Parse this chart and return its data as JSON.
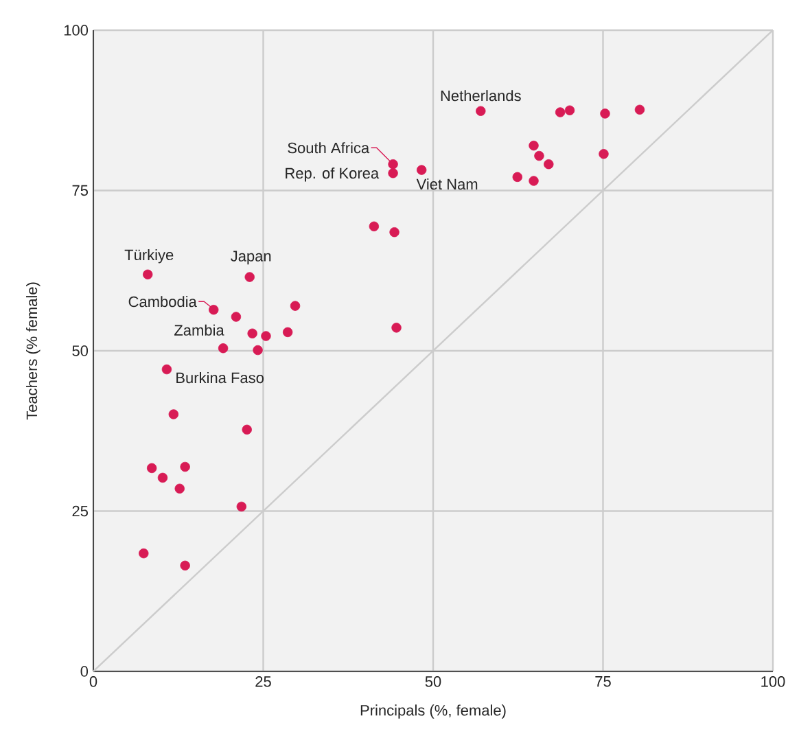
{
  "chart_data": {
    "type": "scatter",
    "xlabel": "Principals (%, female)",
    "ylabel": "Teachers (% female)",
    "xlim": [
      0,
      100
    ],
    "ylim": [
      0,
      100
    ],
    "xticks": [
      0,
      25,
      50,
      75,
      100
    ],
    "yticks": [
      0,
      25,
      50,
      75,
      100
    ],
    "grid": true,
    "series": [
      {
        "marker": "circle",
        "color": "#d81b55",
        "x": [
          8.0,
          23.0,
          17.7,
          21.0,
          29.7,
          23.4,
          25.4,
          28.6,
          44.6,
          19.1,
          24.2,
          10.8,
          11.8,
          22.6,
          8.6,
          13.5,
          10.2,
          12.7,
          21.8,
          7.4,
          13.5,
          57.0,
          68.7,
          70.1,
          75.3,
          80.4,
          64.8,
          65.6,
          67.0,
          75.1,
          62.4,
          64.8,
          44.1,
          44.1,
          48.3,
          41.3,
          44.3
        ],
        "values": [
          61.9,
          61.5,
          56.4,
          55.3,
          57.0,
          52.7,
          52.3,
          52.9,
          53.6,
          50.4,
          50.1,
          47.1,
          40.1,
          37.7,
          31.7,
          31.9,
          30.2,
          28.5,
          25.7,
          18.4,
          16.5,
          87.4,
          87.2,
          87.5,
          87.0,
          87.6,
          82.0,
          80.4,
          79.1,
          80.7,
          77.1,
          76.5,
          79.1,
          77.7,
          78.2,
          69.4,
          68.5
        ]
      },
      {
        "type": "line",
        "marker": "none",
        "color": "#cccccc",
        "x": [
          0,
          100
        ],
        "values": [
          0,
          100
        ]
      }
    ],
    "annotations": [
      {
        "text": "Netherlands",
        "x": 57.0,
        "y": 87.4
      },
      {
        "text": "South Africa",
        "x": 44.1,
        "y": 79.1
      },
      {
        "text": "Rep. of Korea",
        "x": 44.1,
        "y": 77.7
      },
      {
        "text": "Viet Nam",
        "x": 48.3,
        "y": 78.2
      },
      {
        "text": "Türkiye",
        "x": 8.0,
        "y": 61.9
      },
      {
        "text": "Japan",
        "x": 23.0,
        "y": 61.5
      },
      {
        "text": "Cambodia",
        "x": 17.7,
        "y": 56.4
      },
      {
        "text": "Zambia",
        "x": 19.1,
        "y": 50.4
      },
      {
        "text": "Burkina Faso",
        "x": 10.8,
        "y": 47.1
      }
    ]
  }
}
